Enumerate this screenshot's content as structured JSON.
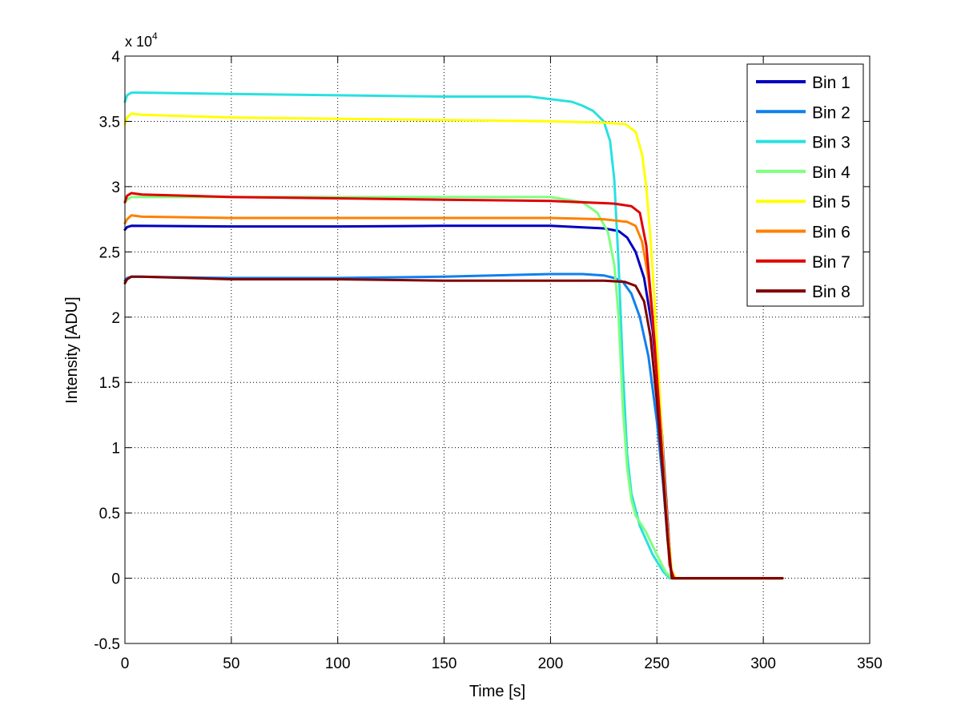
{
  "chart_data": {
    "type": "line",
    "title": "",
    "xlabel": "Time [s]",
    "ylabel": "Intensity [ADU]",
    "y_multiplier_base": "x 10",
    "y_multiplier_exp": "4",
    "xlim": [
      0,
      350
    ],
    "ylim": [
      -0.5,
      4
    ],
    "x_ticks": [
      0,
      50,
      100,
      150,
      200,
      250,
      300,
      350
    ],
    "x_tick_labels": [
      "0",
      "50",
      "100",
      "150",
      "200",
      "250",
      "300",
      "350"
    ],
    "y_ticks": [
      -0.5,
      0,
      0.5,
      1,
      1.5,
      2,
      2.5,
      3,
      3.5,
      4
    ],
    "y_tick_labels": [
      "-0.5",
      "0",
      "0.5",
      "1",
      "1.5",
      "2",
      "2.5",
      "3",
      "3.5",
      "4"
    ],
    "grid": true,
    "legend_position": "top-right",
    "series": [
      {
        "name": "Bin 1",
        "color": "#0000bf",
        "x": [
          0,
          1,
          3,
          50,
          100,
          150,
          200,
          225,
          232,
          236,
          240,
          244,
          248,
          252,
          255,
          257,
          260,
          280,
          309
        ],
        "y": [
          2.67,
          2.69,
          2.7,
          2.695,
          2.695,
          2.7,
          2.7,
          2.68,
          2.66,
          2.61,
          2.5,
          2.3,
          1.9,
          1.2,
          0.45,
          0.0,
          0.0,
          0.0,
          0.0
        ]
      },
      {
        "name": "Bin 2",
        "color": "#0f80ef",
        "x": [
          0,
          1,
          3,
          50,
          100,
          150,
          200,
          215,
          225,
          230,
          234,
          238,
          242,
          246,
          250,
          253,
          255,
          257,
          260,
          309
        ],
        "y": [
          2.28,
          2.3,
          2.31,
          2.3,
          2.3,
          2.31,
          2.33,
          2.33,
          2.32,
          2.3,
          2.27,
          2.18,
          2.0,
          1.7,
          1.2,
          0.7,
          0.3,
          0.0,
          0.0,
          0.0
        ]
      },
      {
        "name": "Bin 3",
        "color": "#2ae0e0",
        "x": [
          0,
          1,
          3,
          8,
          50,
          100,
          150,
          190,
          210,
          215,
          220,
          225,
          228,
          230,
          232,
          234,
          236,
          238,
          242,
          248,
          253,
          256,
          258,
          309
        ],
        "y": [
          3.65,
          3.7,
          3.72,
          3.72,
          3.71,
          3.7,
          3.69,
          3.69,
          3.65,
          3.62,
          3.58,
          3.5,
          3.35,
          3.05,
          2.4,
          1.6,
          0.95,
          0.65,
          0.4,
          0.18,
          0.05,
          0.0,
          0.0,
          0.0
        ]
      },
      {
        "name": "Bin 4",
        "color": "#7fff7f",
        "x": [
          0,
          1,
          3,
          8,
          50,
          100,
          150,
          200,
          215,
          222,
          227,
          230,
          232,
          234,
          236,
          238,
          240,
          245,
          250,
          254,
          257,
          309
        ],
        "y": [
          2.88,
          2.9,
          2.92,
          2.92,
          2.92,
          2.92,
          2.92,
          2.92,
          2.88,
          2.8,
          2.65,
          2.4,
          2.0,
          1.3,
          0.85,
          0.6,
          0.48,
          0.35,
          0.18,
          0.05,
          0.0,
          0.0
        ]
      },
      {
        "name": "Bin 5",
        "color": "#ffff00",
        "x": [
          0,
          1,
          3,
          8,
          50,
          100,
          150,
          200,
          225,
          235,
          240,
          243,
          245,
          247,
          249,
          251,
          253,
          255,
          257,
          259,
          309
        ],
        "y": [
          3.48,
          3.53,
          3.56,
          3.55,
          3.53,
          3.52,
          3.51,
          3.5,
          3.49,
          3.48,
          3.42,
          3.25,
          3.0,
          2.6,
          2.1,
          1.5,
          0.9,
          0.4,
          0.05,
          0.0,
          0.0
        ]
      },
      {
        "name": "Bin 6",
        "color": "#ff8000",
        "x": [
          0,
          1,
          3,
          8,
          50,
          100,
          150,
          200,
          225,
          236,
          240,
          243,
          246,
          249,
          252,
          255,
          257,
          260,
          309
        ],
        "y": [
          2.72,
          2.75,
          2.78,
          2.77,
          2.76,
          2.76,
          2.76,
          2.76,
          2.75,
          2.73,
          2.7,
          2.58,
          2.3,
          1.8,
          1.1,
          0.4,
          0.0,
          0.0,
          0.0
        ]
      },
      {
        "name": "Bin 7",
        "color": "#e00000",
        "x": [
          0,
          1,
          3,
          8,
          50,
          100,
          150,
          200,
          230,
          238,
          242,
          245,
          248,
          251,
          254,
          256,
          258,
          260,
          309
        ],
        "y": [
          2.88,
          2.93,
          2.95,
          2.94,
          2.92,
          2.91,
          2.9,
          2.89,
          2.87,
          2.85,
          2.8,
          2.55,
          2.0,
          1.3,
          0.55,
          0.1,
          0.0,
          0.0,
          0.0
        ]
      },
      {
        "name": "Bin 8",
        "color": "#800000",
        "x": [
          0,
          1,
          3,
          8,
          50,
          100,
          150,
          200,
          225,
          235,
          240,
          244,
          247,
          250,
          253,
          255,
          257,
          260,
          309
        ],
        "y": [
          2.26,
          2.29,
          2.31,
          2.31,
          2.29,
          2.29,
          2.28,
          2.28,
          2.28,
          2.27,
          2.24,
          2.12,
          1.85,
          1.35,
          0.75,
          0.3,
          0.0,
          0.0,
          0.0
        ]
      }
    ]
  }
}
